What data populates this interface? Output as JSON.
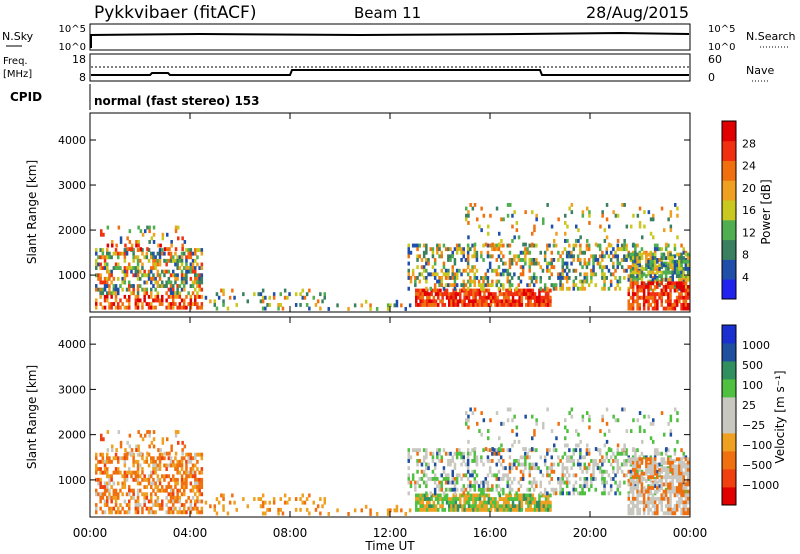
{
  "header": {
    "station": "Pykkvibaer (fitACF)",
    "beam": "Beam 11",
    "date": "28/Aug/2015"
  },
  "strips": {
    "nsky_label": "N.Sky",
    "nsky_ticks": [
      "10^5",
      "10^0"
    ],
    "nsearch_label": "N.Search",
    "nsearch_ticks": [
      "10^5",
      "10^0"
    ],
    "freq_label_1": "Freq.",
    "freq_label_2": "[MHz]",
    "freq_ticks": [
      "18",
      "8"
    ],
    "nave_label": "Nave",
    "nave_ticks": [
      "60",
      "0"
    ],
    "cpid_label": "CPID",
    "cpid_text": "normal (fast stereo) 153"
  },
  "colors": {
    "power_scale": [
      "#2222ee",
      "#1f4fa8",
      "#3a7f5f",
      "#4fae4f",
      "#c8c820",
      "#f0a020",
      "#f07010",
      "#f03010",
      "#e00000"
    ],
    "velocity_scale": [
      "#e00000",
      "#f04010",
      "#f07010",
      "#f0a020",
      "#c8c8c0",
      "#c8c8c0",
      "#50c040",
      "#2f8f5f",
      "#1f4f9f",
      "#1a2fcf"
    ]
  },
  "chart_data": [
    {
      "type": "heatmap",
      "name": "power",
      "ylabel": "Slant Range [km]",
      "yticks": [
        "4000",
        "3000",
        "2000",
        "1000"
      ],
      "xticks": [
        "00:00",
        "04:00",
        "08:00",
        "12:00",
        "16:00",
        "20:00",
        "00:00"
      ],
      "colorbar_label": "Power [dB]",
      "colorbar_ticks": [
        "28",
        "24",
        "20",
        "16",
        "12",
        "8",
        "4"
      ],
      "ylim_km": [
        180,
        4600
      ],
      "xlim_h": [
        0,
        24
      ]
    },
    {
      "type": "heatmap",
      "name": "velocity",
      "ylabel": "Slant Range [km]",
      "yticks": [
        "4000",
        "3000",
        "2000",
        "1000"
      ],
      "xticks": [
        "00:00",
        "04:00",
        "08:00",
        "12:00",
        "16:00",
        "20:00",
        "00:00"
      ],
      "colorbar_label": "Velocity [m s⁻¹]",
      "colorbar_ticks": [
        "1000",
        "500",
        "100",
        "25",
        "−25",
        "−100",
        "−500",
        "−1000"
      ],
      "ylim_km": [
        180,
        4600
      ],
      "xlim_h": [
        0,
        24
      ]
    }
  ],
  "xlabel": "Time UT"
}
